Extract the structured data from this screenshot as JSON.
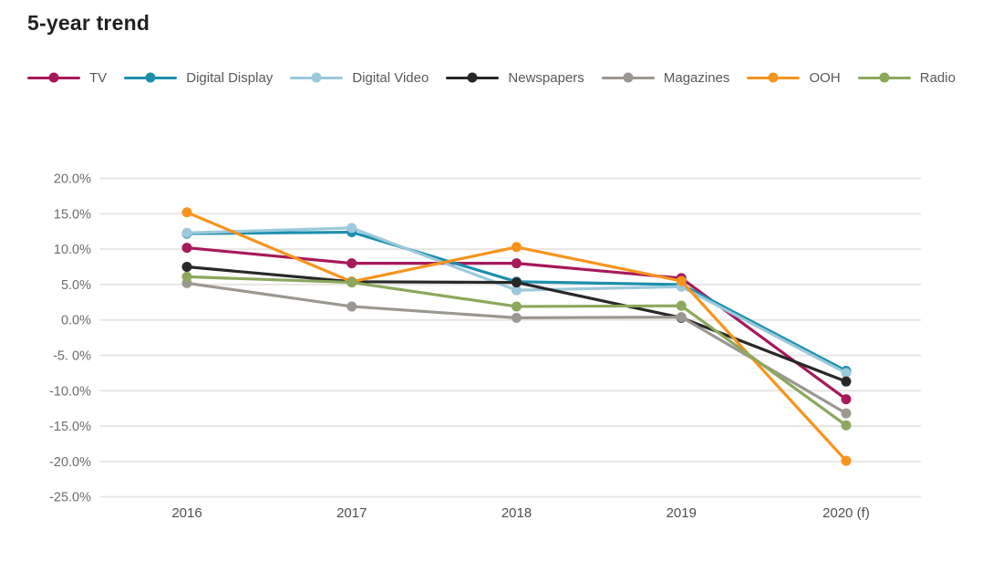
{
  "page_title": "5-year trend",
  "chart_data": {
    "type": "line",
    "title": "5-year trend",
    "categories": [
      "2016",
      "2017",
      "2018",
      "2019",
      "2020 (f)"
    ],
    "series": [
      {
        "name": "TV",
        "color": "#A6195B",
        "values": [
          10.2,
          8.0,
          8.0,
          5.9,
          -11.2
        ]
      },
      {
        "name": "Digital Display",
        "color": "#1D8FAD",
        "values": [
          12.2,
          12.4,
          5.4,
          5.0,
          -7.2
        ]
      },
      {
        "name": "Digital Video",
        "color": "#9CC9DD",
        "values": [
          12.3,
          13.0,
          4.2,
          4.7,
          -7.5
        ]
      },
      {
        "name": "Newspapers",
        "color": "#282828",
        "values": [
          7.5,
          5.4,
          5.3,
          0.3,
          -8.7
        ]
      },
      {
        "name": "Magazines",
        "color": "#9B9790",
        "values": [
          5.2,
          1.9,
          0.3,
          0.4,
          -13.2
        ]
      },
      {
        "name": "OOH",
        "color": "#F7941E",
        "values": [
          15.2,
          5.4,
          10.3,
          5.5,
          -19.9
        ]
      },
      {
        "name": "Radio",
        "color": "#8CA85C",
        "values": [
          6.1,
          5.3,
          1.9,
          2.0,
          -14.9
        ]
      }
    ],
    "ylabel": "",
    "xlabel": "",
    "ylim": [
      -25,
      20
    ],
    "y_ticks": [
      {
        "value": 20,
        "label": "20.0%"
      },
      {
        "value": 15,
        "label": "15.0%"
      },
      {
        "value": 10,
        "label": "10.0%"
      },
      {
        "value": 5,
        "label": "5.0%"
      },
      {
        "value": 0,
        "label": "0.0%"
      },
      {
        "value": -5,
        "label": "-5. 0%"
      },
      {
        "value": -10,
        "label": "-10.0%"
      },
      {
        "value": -15,
        "label": "-15.0%"
      },
      {
        "value": -20,
        "label": "-20.0%"
      },
      {
        "value": -25,
        "label": "-25.0%"
      }
    ],
    "grid": "horizontal",
    "grid_color": "#e8e6e3",
    "legend_position": "top"
  }
}
